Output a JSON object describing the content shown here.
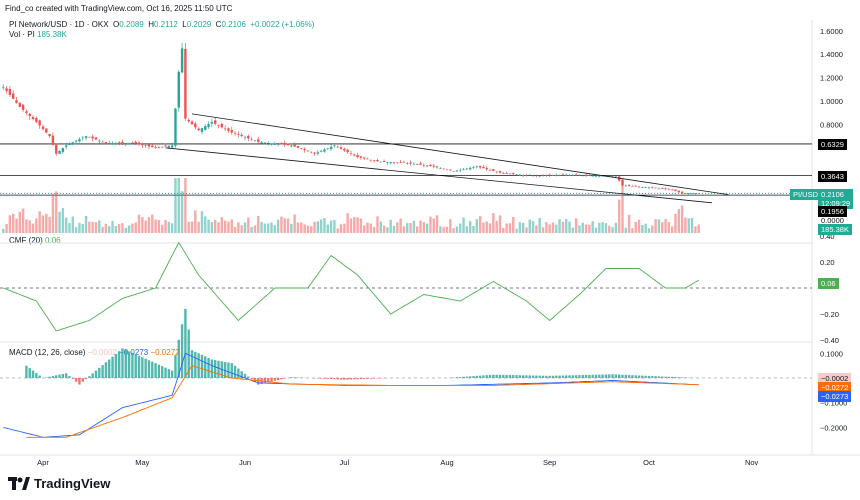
{
  "header": {
    "credit": "Find_co created with TradingView.com, Oct 16, 2025 11:50 UTC",
    "symbol": "PI Network/USD · 1D · OKX",
    "o_label": "O",
    "o": "0.2089",
    "h_label": "H",
    "h": "0.2112",
    "l_label": "L",
    "l": "0.2029",
    "c_label": "C",
    "c": "0.2106",
    "change": "+0.0022 (+1.06%)",
    "vol_label": "Vol · PI",
    "vol": "185.38K"
  },
  "colors": {
    "up": "#26a69a",
    "down": "#ef5350",
    "cmf": "#4caf50",
    "macd": "#2962ff",
    "signal": "#ff6d00",
    "teal_label": "#22ab94"
  },
  "price_axis": {
    "ticks": [
      "1.6000",
      "1.4000",
      "1.2000",
      "1.0000",
      "0.8000"
    ],
    "tick_values": [
      1.6,
      1.4,
      1.2,
      1.0,
      0.8
    ],
    "level_labels": [
      "0.6329",
      "0.3643",
      "0.1956"
    ],
    "level_values": [
      0.6329,
      0.3643,
      0.1956
    ],
    "symbol_tag": "PI/USD",
    "last_price": "0.2106",
    "countdown": "12:09:29",
    "vol_zero": "0.0000",
    "vol_last": "185.38K"
  },
  "cmf": {
    "title": "CMF (20)",
    "value": "0.06",
    "ticks": [
      "0.40",
      "0.20",
      "0.00",
      "−0.20",
      "−0.40"
    ],
    "tick_values": [
      0.4,
      0.2,
      0,
      -0.2,
      -0.4
    ]
  },
  "macd": {
    "title": "MACD (12, 26, close)",
    "hist_value": "−0.0002",
    "macd_value": "−0.0273",
    "signal_value": "−0.0272",
    "ticks": [
      "0.1000",
      "−0.1000",
      "−0.2000"
    ],
    "tick_values": [
      0.1,
      -0.1,
      -0.2
    ]
  },
  "time_axis": [
    "Apr",
    "May",
    "Jun",
    "Jul",
    "Aug",
    "Sep",
    "Oct",
    "Nov"
  ],
  "brand": "TradingView",
  "chart_data": {
    "type": "candlestick",
    "price_keypoints": [
      [
        "2025-03-20",
        1.12
      ],
      [
        "2025-03-25",
        0.95
      ],
      [
        "2025-03-30",
        0.82
      ],
      [
        "2025-04-03",
        0.7
      ],
      [
        "2025-04-05",
        0.55
      ],
      [
        "2025-04-08",
        0.62
      ],
      [
        "2025-04-14",
        0.7
      ],
      [
        "2025-04-20",
        0.64
      ],
      [
        "2025-04-28",
        0.64
      ],
      [
        "2025-05-05",
        0.6
      ],
      [
        "2025-05-10",
        0.62
      ],
      [
        "2025-05-12",
        1.25
      ],
      [
        "2025-05-13",
        1.45
      ],
      [
        "2025-05-14",
        0.85
      ],
      [
        "2025-05-18",
        0.75
      ],
      [
        "2025-05-22",
        0.82
      ],
      [
        "2025-05-28",
        0.73
      ],
      [
        "2025-06-05",
        0.65
      ],
      [
        "2025-06-15",
        0.62
      ],
      [
        "2025-06-22",
        0.55
      ],
      [
        "2025-06-28",
        0.62
      ],
      [
        "2025-07-05",
        0.52
      ],
      [
        "2025-07-12",
        0.48
      ],
      [
        "2025-07-20",
        0.47
      ],
      [
        "2025-07-28",
        0.44
      ],
      [
        "2025-08-03",
        0.4
      ],
      [
        "2025-08-10",
        0.44
      ],
      [
        "2025-08-18",
        0.38
      ],
      [
        "2025-08-28",
        0.36
      ],
      [
        "2025-09-05",
        0.37
      ],
      [
        "2025-09-15",
        0.36
      ],
      [
        "2025-09-21",
        0.36
      ],
      [
        "2025-09-23",
        0.28
      ],
      [
        "2025-10-01",
        0.26
      ],
      [
        "2025-10-08",
        0.24
      ],
      [
        "2025-10-11",
        0.21
      ],
      [
        "2025-10-16",
        0.2106
      ]
    ],
    "cmf_keypoints": [
      [
        "2025-03-20",
        0.0
      ],
      [
        "2025-03-30",
        -0.1
      ],
      [
        "2025-04-05",
        -0.33
      ],
      [
        "2025-04-15",
        -0.25
      ],
      [
        "2025-04-25",
        -0.08
      ],
      [
        "2025-05-05",
        0.0
      ],
      [
        "2025-05-12",
        0.35
      ],
      [
        "2025-05-18",
        0.1
      ],
      [
        "2025-05-30",
        -0.25
      ],
      [
        "2025-06-10",
        0.0
      ],
      [
        "2025-06-20",
        0.0
      ],
      [
        "2025-06-27",
        0.25
      ],
      [
        "2025-07-05",
        0.1
      ],
      [
        "2025-07-15",
        -0.2
      ],
      [
        "2025-07-25",
        -0.05
      ],
      [
        "2025-08-05",
        -0.1
      ],
      [
        "2025-08-15",
        0.05
      ],
      [
        "2025-08-25",
        -0.1
      ],
      [
        "2025-09-01",
        -0.25
      ],
      [
        "2025-09-10",
        -0.05
      ],
      [
        "2025-09-18",
        0.15
      ],
      [
        "2025-09-28",
        0.15
      ],
      [
        "2025-10-06",
        0.0
      ],
      [
        "2025-10-12",
        0.0
      ],
      [
        "2025-10-16",
        0.06
      ]
    ],
    "macd_keypoints": [
      [
        "2025-03-20",
        -0.2
      ],
      [
        "2025-04-01",
        -0.24
      ],
      [
        "2025-04-12",
        -0.23
      ],
      [
        "2025-04-25",
        -0.12
      ],
      [
        "2025-05-10",
        -0.07
      ],
      [
        "2025-05-14",
        0.1
      ],
      [
        "2025-05-22",
        0.05
      ],
      [
        "2025-06-05",
        -0.02
      ],
      [
        "2025-07-01",
        -0.03
      ],
      [
        "2025-08-01",
        -0.03
      ],
      [
        "2025-09-01",
        -0.02
      ],
      [
        "2025-09-20",
        -0.01
      ],
      [
        "2025-10-16",
        -0.0273
      ]
    ],
    "signal_keypoints": [
      [
        "2025-03-27",
        -0.24
      ],
      [
        "2025-04-08",
        -0.24
      ],
      [
        "2025-04-25",
        -0.16
      ],
      [
        "2025-05-10",
        -0.08
      ],
      [
        "2025-05-16",
        0.05
      ],
      [
        "2025-05-28",
        0.0
      ],
      [
        "2025-06-15",
        -0.025
      ],
      [
        "2025-07-15",
        -0.03
      ],
      [
        "2025-08-15",
        -0.03
      ],
      [
        "2025-09-20",
        -0.015
      ],
      [
        "2025-10-16",
        -0.0272
      ]
    ],
    "ylim_price": [
      0,
      1.6
    ],
    "ylim_cmf": [
      -0.4,
      0.4
    ],
    "ylim_macd": [
      -0.2,
      0.1
    ],
    "trendlines": [
      [
        [
          "2025-05-16",
          0.89
        ],
        [
          "2025-10-25",
          0.2
        ]
      ],
      [
        [
          "2025-05-08",
          0.6
        ],
        [
          "2025-10-20",
          0.13
        ]
      ]
    ]
  }
}
